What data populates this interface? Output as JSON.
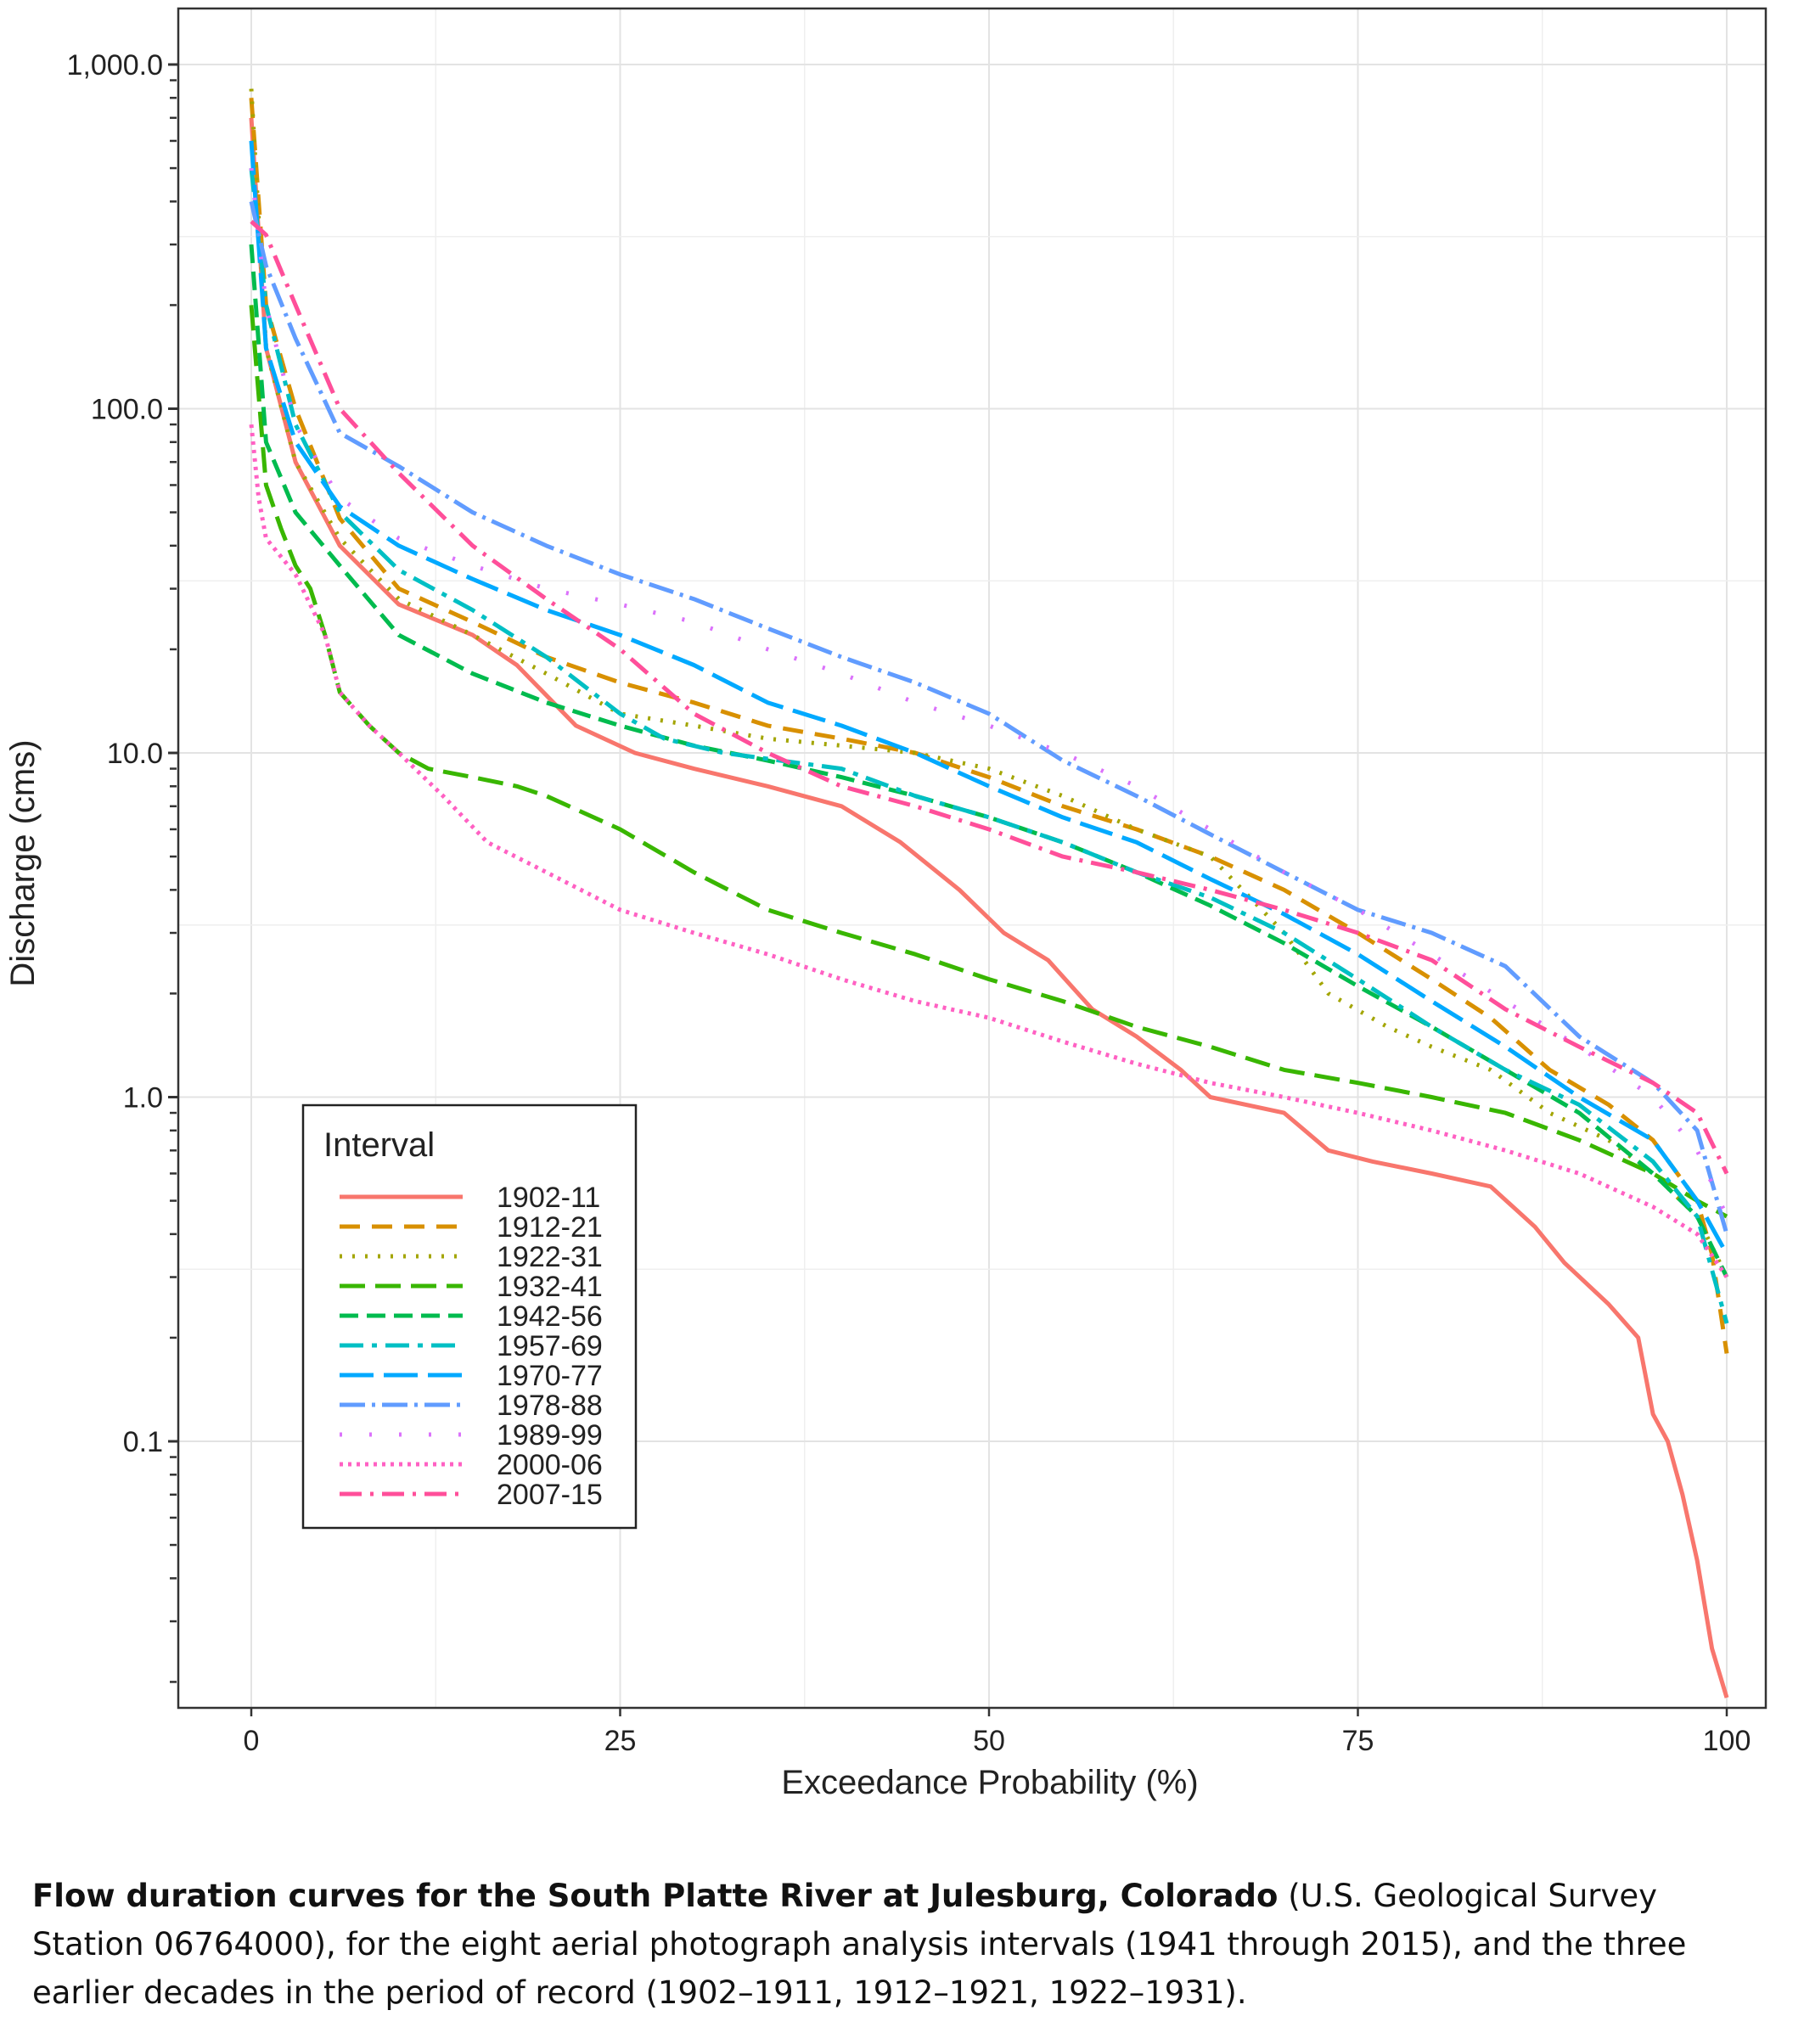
{
  "chart_data": {
    "type": "line",
    "title": "",
    "xlabel": "Exceedance Probability (%)",
    "ylabel": "Discharge (cms)",
    "xlim": [
      0,
      100
    ],
    "ylim": [
      0.02,
      1000
    ],
    "yscale": "log",
    "grid": true,
    "legend": {
      "title": "Interval",
      "placement": "bottom-left"
    },
    "x_ticks": [
      {
        "value": 0,
        "label": "0"
      },
      {
        "value": 25,
        "label": "25"
      },
      {
        "value": 50,
        "label": "50"
      },
      {
        "value": 75,
        "label": "75"
      },
      {
        "value": 100,
        "label": "100"
      }
    ],
    "y_ticks": [
      {
        "value": 0.1,
        "label": "0.1"
      },
      {
        "value": 1,
        "label": "1.0"
      },
      {
        "value": 10,
        "label": "10.0"
      },
      {
        "value": 100,
        "label": "100.0"
      },
      {
        "value": 1000,
        "label": "1,000.0"
      }
    ],
    "series": [
      {
        "name": "1902-11",
        "color": "#F8766D",
        "dash": "solid",
        "points": [
          [
            0,
            700
          ],
          [
            1,
            150
          ],
          [
            3,
            70
          ],
          [
            6,
            40
          ],
          [
            10,
            27
          ],
          [
            15,
            22
          ],
          [
            18,
            18
          ],
          [
            22,
            12
          ],
          [
            26,
            10
          ],
          [
            30,
            9
          ],
          [
            35,
            8
          ],
          [
            40,
            7
          ],
          [
            44,
            5.5
          ],
          [
            48,
            4
          ],
          [
            51,
            3
          ],
          [
            54,
            2.5
          ],
          [
            57,
            1.8
          ],
          [
            60,
            1.5
          ],
          [
            63,
            1.2
          ],
          [
            65,
            1.0
          ],
          [
            70,
            0.9
          ],
          [
            73,
            0.7
          ],
          [
            76,
            0.65
          ],
          [
            80,
            0.6
          ],
          [
            84,
            0.55
          ],
          [
            87,
            0.42
          ],
          [
            89,
            0.33
          ],
          [
            92,
            0.25
          ],
          [
            94,
            0.2
          ],
          [
            95,
            0.12
          ],
          [
            96,
            0.1
          ],
          [
            97,
            0.07
          ],
          [
            98,
            0.045
          ],
          [
            99,
            0.025
          ],
          [
            100,
            0.018
          ]
        ]
      },
      {
        "name": "1912-21",
        "color": "#D89000",
        "dash": "24 14",
        "points": [
          [
            0,
            800
          ],
          [
            1,
            200
          ],
          [
            3,
            100
          ],
          [
            6,
            48
          ],
          [
            10,
            30
          ],
          [
            15,
            24
          ],
          [
            20,
            19
          ],
          [
            25,
            16
          ],
          [
            30,
            14
          ],
          [
            35,
            12
          ],
          [
            40,
            11
          ],
          [
            45,
            10
          ],
          [
            50,
            8.5
          ],
          [
            55,
            7
          ],
          [
            60,
            6
          ],
          [
            65,
            5
          ],
          [
            70,
            4
          ],
          [
            75,
            3
          ],
          [
            80,
            2.2
          ],
          [
            84,
            1.7
          ],
          [
            88,
            1.2
          ],
          [
            92,
            0.95
          ],
          [
            95,
            0.75
          ],
          [
            98,
            0.5
          ],
          [
            99,
            0.35
          ],
          [
            100,
            0.18
          ]
        ]
      },
      {
        "name": "1922-31",
        "color": "#A3A500",
        "dash": "3 12",
        "points": [
          [
            0,
            850
          ],
          [
            1,
            150
          ],
          [
            3,
            70
          ],
          [
            6,
            42
          ],
          [
            10,
            28
          ],
          [
            15,
            22
          ],
          [
            20,
            17
          ],
          [
            25,
            13
          ],
          [
            30,
            12
          ],
          [
            35,
            11
          ],
          [
            40,
            10.5
          ],
          [
            45,
            10
          ],
          [
            50,
            9
          ],
          [
            55,
            7.5
          ],
          [
            60,
            6
          ],
          [
            65,
            5
          ],
          [
            70,
            3
          ],
          [
            73,
            2
          ],
          [
            77,
            1.6
          ],
          [
            80,
            1.4
          ],
          [
            84,
            1.2
          ],
          [
            88,
            0.9
          ],
          [
            92,
            0.75
          ],
          [
            95,
            0.6
          ],
          [
            98,
            0.45
          ],
          [
            100,
            0.3
          ]
        ]
      },
      {
        "name": "1932-41",
        "color": "#39B600",
        "dash": "30 12",
        "points": [
          [
            0,
            200
          ],
          [
            1,
            60
          ],
          [
            2,
            45
          ],
          [
            3,
            35
          ],
          [
            4,
            30
          ],
          [
            5,
            22
          ],
          [
            6,
            15
          ],
          [
            8,
            12
          ],
          [
            10,
            10
          ],
          [
            12,
            9
          ],
          [
            15,
            8.5
          ],
          [
            18,
            8
          ],
          [
            20,
            7.5
          ],
          [
            25,
            6
          ],
          [
            30,
            4.5
          ],
          [
            35,
            3.5
          ],
          [
            40,
            3
          ],
          [
            45,
            2.6
          ],
          [
            50,
            2.2
          ],
          [
            55,
            1.9
          ],
          [
            60,
            1.6
          ],
          [
            65,
            1.4
          ],
          [
            70,
            1.2
          ],
          [
            75,
            1.1
          ],
          [
            80,
            1.0
          ],
          [
            85,
            0.9
          ],
          [
            90,
            0.75
          ],
          [
            95,
            0.6
          ],
          [
            98,
            0.5
          ],
          [
            100,
            0.45
          ]
        ]
      },
      {
        "name": "1942-56",
        "color": "#00BB4E",
        "dash": "22 10 22 10",
        "points": [
          [
            0,
            300
          ],
          [
            1,
            80
          ],
          [
            3,
            50
          ],
          [
            6,
            35
          ],
          [
            10,
            22
          ],
          [
            15,
            17
          ],
          [
            20,
            14
          ],
          [
            25,
            12
          ],
          [
            30,
            10.5
          ],
          [
            35,
            9.5
          ],
          [
            40,
            8.5
          ],
          [
            45,
            7.5
          ],
          [
            50,
            6.5
          ],
          [
            55,
            5.5
          ],
          [
            60,
            4.5
          ],
          [
            65,
            3.6
          ],
          [
            70,
            2.8
          ],
          [
            75,
            2.1
          ],
          [
            80,
            1.6
          ],
          [
            85,
            1.2
          ],
          [
            90,
            0.9
          ],
          [
            95,
            0.6
          ],
          [
            98,
            0.45
          ],
          [
            100,
            0.3
          ]
        ]
      },
      {
        "name": "1957-69",
        "color": "#00BFC4",
        "dash": "28 10 6 10",
        "points": [
          [
            0,
            500
          ],
          [
            1,
            200
          ],
          [
            3,
            90
          ],
          [
            6,
            50
          ],
          [
            10,
            34
          ],
          [
            15,
            26
          ],
          [
            20,
            19
          ],
          [
            25,
            13
          ],
          [
            28,
            11
          ],
          [
            32,
            10
          ],
          [
            40,
            9
          ],
          [
            45,
            7.5
          ],
          [
            50,
            6.5
          ],
          [
            55,
            5.5
          ],
          [
            60,
            4.5
          ],
          [
            65,
            3.8
          ],
          [
            70,
            3
          ],
          [
            75,
            2.2
          ],
          [
            80,
            1.6
          ],
          [
            85,
            1.2
          ],
          [
            90,
            0.95
          ],
          [
            95,
            0.65
          ],
          [
            98,
            0.45
          ],
          [
            100,
            0.22
          ]
        ]
      },
      {
        "name": "1970-77",
        "color": "#00A9FF",
        "dash": "40 12",
        "points": [
          [
            0,
            600
          ],
          [
            1,
            150
          ],
          [
            3,
            80
          ],
          [
            6,
            52
          ],
          [
            10,
            40
          ],
          [
            15,
            32
          ],
          [
            20,
            26
          ],
          [
            25,
            22
          ],
          [
            30,
            18
          ],
          [
            35,
            14
          ],
          [
            40,
            12
          ],
          [
            45,
            10
          ],
          [
            50,
            8
          ],
          [
            55,
            6.5
          ],
          [
            60,
            5.5
          ],
          [
            65,
            4.3
          ],
          [
            70,
            3.4
          ],
          [
            75,
            2.6
          ],
          [
            80,
            1.9
          ],
          [
            85,
            1.4
          ],
          [
            90,
            1.0
          ],
          [
            95,
            0.75
          ],
          [
            98,
            0.5
          ],
          [
            100,
            0.35
          ]
        ]
      },
      {
        "name": "1978-88",
        "color": "#619CFF",
        "dash": "30 8 4 8",
        "points": [
          [
            0,
            400
          ],
          [
            1,
            260
          ],
          [
            3,
            160
          ],
          [
            6,
            85
          ],
          [
            10,
            68
          ],
          [
            15,
            50
          ],
          [
            20,
            40
          ],
          [
            25,
            33
          ],
          [
            30,
            28
          ],
          [
            35,
            23
          ],
          [
            40,
            19
          ],
          [
            45,
            16
          ],
          [
            50,
            13
          ],
          [
            55,
            9.5
          ],
          [
            60,
            7.5
          ],
          [
            65,
            5.8
          ],
          [
            70,
            4.5
          ],
          [
            75,
            3.5
          ],
          [
            80,
            3
          ],
          [
            85,
            2.4
          ],
          [
            90,
            1.5
          ],
          [
            95,
            1.1
          ],
          [
            98,
            0.8
          ],
          [
            100,
            0.4
          ]
        ]
      },
      {
        "name": "1989-99",
        "color": "#DB72FB",
        "dash": "3 32",
        "points": [
          [
            0,
            500
          ],
          [
            1,
            200
          ],
          [
            3,
            90
          ],
          [
            6,
            55
          ],
          [
            10,
            42
          ],
          [
            15,
            35
          ],
          [
            20,
            30
          ],
          [
            25,
            27
          ],
          [
            30,
            24
          ],
          [
            35,
            20
          ],
          [
            40,
            17
          ],
          [
            45,
            14
          ],
          [
            50,
            12
          ],
          [
            55,
            10
          ],
          [
            60,
            8
          ],
          [
            65,
            6
          ],
          [
            70,
            4.5
          ],
          [
            75,
            3.5
          ],
          [
            80,
            2.6
          ],
          [
            85,
            1.9
          ],
          [
            90,
            1.4
          ],
          [
            95,
            1.0
          ],
          [
            98,
            0.7
          ],
          [
            100,
            0.45
          ]
        ]
      },
      {
        "name": "2000-06",
        "color": "#FF61C3",
        "dash": "4 6",
        "points": [
          [
            0,
            90
          ],
          [
            0.5,
            55
          ],
          [
            1,
            42
          ],
          [
            3,
            33
          ],
          [
            5,
            22
          ],
          [
            6,
            15
          ],
          [
            8,
            12
          ],
          [
            10,
            10
          ],
          [
            13,
            7.5
          ],
          [
            16,
            5.5
          ],
          [
            20,
            4.5
          ],
          [
            25,
            3.5
          ],
          [
            30,
            3
          ],
          [
            35,
            2.6
          ],
          [
            40,
            2.2
          ],
          [
            45,
            1.9
          ],
          [
            50,
            1.7
          ],
          [
            55,
            1.45
          ],
          [
            60,
            1.25
          ],
          [
            65,
            1.1
          ],
          [
            70,
            1.0
          ],
          [
            75,
            0.9
          ],
          [
            80,
            0.8
          ],
          [
            85,
            0.7
          ],
          [
            90,
            0.6
          ],
          [
            95,
            0.48
          ],
          [
            98,
            0.4
          ],
          [
            100,
            0.3
          ]
        ]
      },
      {
        "name": "2007-15",
        "color": "#FF4F9A",
        "dash": "26 10 4 10",
        "points": [
          [
            0,
            350
          ],
          [
            1,
            320
          ],
          [
            3,
            200
          ],
          [
            6,
            100
          ],
          [
            10,
            65
          ],
          [
            15,
            40
          ],
          [
            20,
            28
          ],
          [
            25,
            20
          ],
          [
            30,
            13
          ],
          [
            35,
            10
          ],
          [
            40,
            8
          ],
          [
            45,
            7
          ],
          [
            50,
            6
          ],
          [
            55,
            5
          ],
          [
            60,
            4.5
          ],
          [
            65,
            4
          ],
          [
            70,
            3.5
          ],
          [
            75,
            3
          ],
          [
            80,
            2.5
          ],
          [
            85,
            1.8
          ],
          [
            90,
            1.4
          ],
          [
            95,
            1.1
          ],
          [
            98,
            0.9
          ],
          [
            100,
            0.6
          ]
        ]
      }
    ]
  },
  "caption": {
    "bold": "Flow duration curves for the South Platte River at Julesburg, Colorado",
    "text": " (U.S. Geological Survey Station 06764000), for the eight aerial photograph analysis intervals (1941 through 2015), and the three earlier decades in the period of record (1902–1911, 1912–1921, 1922–1931)."
  }
}
